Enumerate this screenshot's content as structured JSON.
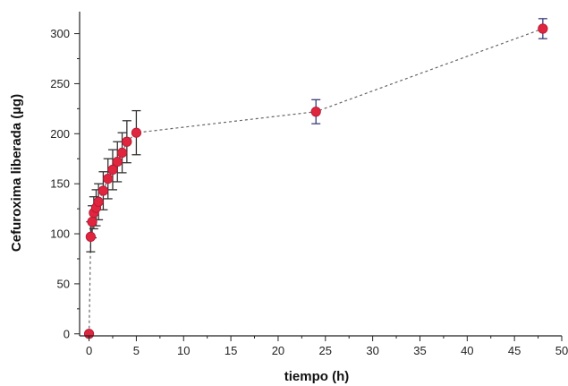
{
  "chart_data": {
    "type": "scatter",
    "title": "",
    "xlabel": "tiempo (h)",
    "ylabel": "Cefuroxima liberada (µg)",
    "xlim": [
      -1,
      50
    ],
    "ylim": [
      -2,
      322
    ],
    "x_ticks": [
      0,
      5,
      10,
      15,
      20,
      25,
      30,
      35,
      40,
      45,
      50
    ],
    "y_ticks": [
      0,
      50,
      100,
      150,
      200,
      250,
      300
    ],
    "x_tick_labels": [
      "0",
      "5",
      "10",
      "15",
      "20",
      "25",
      "30",
      "35",
      "40",
      "45",
      "50"
    ],
    "y_tick_labels": [
      "0",
      "50",
      "100",
      "150",
      "200",
      "250",
      "300"
    ],
    "grid": false,
    "legend": "none",
    "series": [
      {
        "x": [
          0,
          0.17,
          0.33,
          0.5,
          0.75,
          1,
          1.5,
          2,
          2.5,
          3,
          3.5,
          4,
          5,
          24,
          48
        ],
        "y": [
          0,
          97,
          112,
          121,
          126,
          132,
          143,
          155,
          164,
          172,
          181,
          192,
          201,
          222,
          305
        ],
        "error": [
          0,
          15,
          16,
          16,
          18,
          18,
          19,
          20,
          20,
          20,
          20,
          21,
          22,
          12,
          10
        ],
        "marker_color": "#e0253f",
        "error_color": "#333333",
        "line_color": "#666666",
        "line_style": "dashed"
      }
    ]
  }
}
